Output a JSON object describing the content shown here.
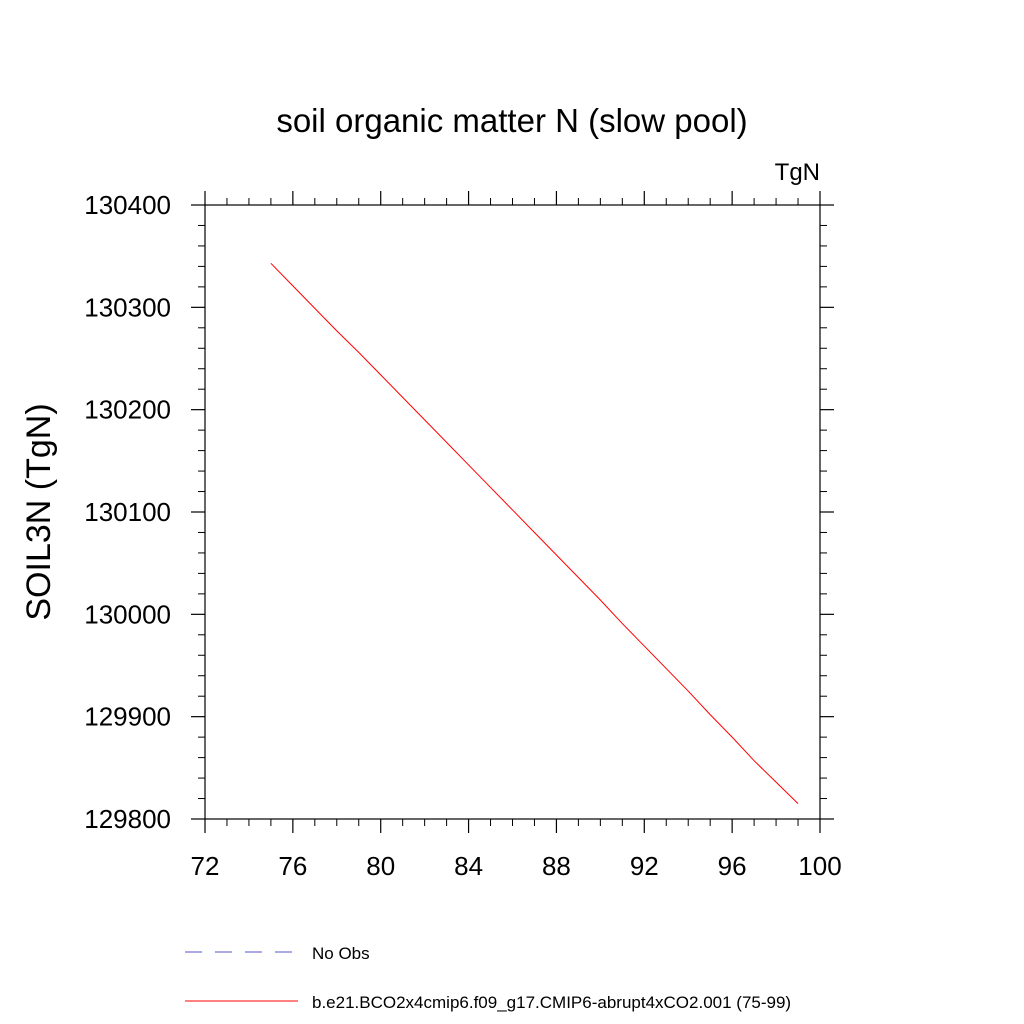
{
  "chart_data": {
    "type": "line",
    "title": "soil organic matter N (slow pool)",
    "units": "TgN",
    "ylabel": "SOIL3N  (TgN)",
    "xlabel": "",
    "xlim": [
      72,
      100
    ],
    "ylim": [
      129800,
      130400
    ],
    "xticks": [
      72,
      76,
      80,
      84,
      88,
      92,
      96,
      100
    ],
    "yticks": [
      129800,
      129900,
      130000,
      130100,
      130200,
      130300,
      130400
    ],
    "series": [
      {
        "name": "b.e21.BCO2x4cmip6.f09_g17.CMIP6-abrupt4xCO2.001 (75-99)",
        "color": "#ff0000",
        "style": "solid",
        "x": [
          75,
          76,
          77,
          78,
          79,
          80,
          81,
          82,
          83,
          84,
          85,
          86,
          87,
          88,
          89,
          90,
          91,
          92,
          93,
          94,
          95,
          96,
          97,
          98,
          99
        ],
        "y": [
          130343,
          130321,
          130299,
          130277,
          130256,
          130234,
          130212,
          130190,
          130168,
          130146,
          130124,
          130102,
          130080,
          130058,
          130036,
          130014,
          129991,
          129969,
          129947,
          129925,
          129902,
          129880,
          129857,
          129836,
          129815
        ]
      }
    ],
    "legend": [
      {
        "label": "No Obs",
        "color": "#5555cc",
        "style": "dashed"
      },
      {
        "label": "b.e21.BCO2x4cmip6.f09_g17.CMIP6-abrupt4xCO2.001 (75-99)",
        "color": "#ff0000",
        "style": "solid"
      }
    ],
    "legend_position": "bottom"
  }
}
